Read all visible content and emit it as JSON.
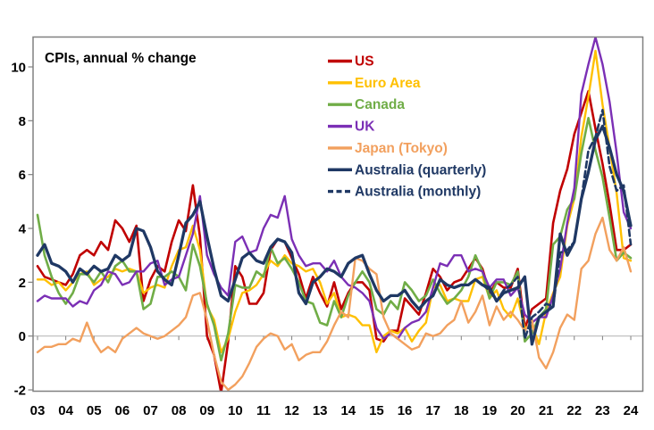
{
  "title": "CPIs, annual % change",
  "frame_color": "#808080",
  "zero_line_color": "#b9b9b9",
  "tick_color": "#808080",
  "chart_data": {
    "type": "line",
    "title": "CPIs, annual % change",
    "xlabel": "",
    "ylabel": "",
    "x_tick_labels": [
      "03",
      "04",
      "05",
      "06",
      "07",
      "08",
      "09",
      "10",
      "11",
      "12",
      "13",
      "14",
      "15",
      "16",
      "17",
      "18",
      "19",
      "20",
      "21",
      "22",
      "23",
      "24"
    ],
    "y_ticks": [
      -2,
      0,
      2,
      4,
      6,
      8,
      10
    ],
    "x_range": [
      2003.0,
      2024.35
    ],
    "y_range": [
      -2.05,
      11.1
    ],
    "grid": "horizontal-zero-line-only",
    "legend_position": "inside-top-center",
    "x_step": 0.25,
    "series": [
      {
        "name": "US",
        "color": "#C00000",
        "style": "solid",
        "width": 2.6,
        "start": 2003.0,
        "values": [
          2.6,
          2.2,
          2.1,
          2.0,
          1.9,
          2.3,
          3.0,
          3.2,
          3.0,
          3.5,
          3.2,
          4.3,
          4.0,
          3.5,
          4.1,
          1.3,
          2.1,
          2.6,
          2.4,
          3.5,
          4.3,
          3.9,
          5.6,
          3.7,
          0.0,
          -0.7,
          -2.1,
          -0.2,
          2.6,
          2.2,
          1.2,
          1.2,
          1.6,
          3.2,
          3.6,
          3.5,
          2.9,
          2.3,
          1.4,
          2.2,
          1.6,
          1.1,
          2.0,
          1.0,
          1.6,
          2.0,
          2.0,
          1.7,
          -0.1,
          -0.2,
          0.2,
          0.2,
          1.4,
          1.1,
          0.8,
          1.6,
          2.5,
          2.2,
          1.7,
          2.0,
          2.1,
          2.5,
          2.9,
          2.5,
          1.6,
          2.0,
          1.8,
          1.8,
          2.5,
          0.3,
          1.0,
          1.2,
          1.4,
          4.2,
          5.4,
          6.2,
          7.5,
          8.3,
          9.1,
          7.7,
          6.4,
          4.9,
          3.2,
          3.2,
          3.4
        ]
      },
      {
        "name": "Euro Area",
        "color": "#FFC000",
        "style": "solid",
        "width": 2.4,
        "start": 2003.0,
        "values": [
          2.1,
          2.1,
          1.9,
          2.0,
          1.7,
          2.0,
          2.3,
          2.4,
          1.9,
          2.1,
          2.2,
          2.5,
          2.4,
          2.5,
          2.4,
          1.6,
          1.8,
          1.9,
          1.8,
          2.6,
          3.2,
          3.3,
          4.1,
          3.2,
          1.1,
          0.6,
          -0.6,
          -0.1,
          0.9,
          1.6,
          1.7,
          1.9,
          2.3,
          2.8,
          2.6,
          3.0,
          2.7,
          2.6,
          2.4,
          2.5,
          2.0,
          1.2,
          1.6,
          0.7,
          0.8,
          0.7,
          0.4,
          0.4,
          -0.6,
          0.0,
          0.2,
          0.1,
          0.3,
          -0.2,
          0.2,
          0.5,
          1.8,
          1.9,
          1.3,
          1.4,
          1.3,
          1.3,
          2.1,
          2.2,
          1.4,
          1.7,
          1.0,
          0.7,
          1.4,
          0.3,
          0.4,
          -0.3,
          0.9,
          1.6,
          2.2,
          4.1,
          5.1,
          7.4,
          8.9,
          10.6,
          8.6,
          7.0,
          5.3,
          2.9,
          2.8
        ]
      },
      {
        "name": "Canada",
        "color": "#70AD47",
        "style": "solid",
        "width": 2.6,
        "start": 2003.0,
        "values": [
          4.5,
          3.0,
          2.2,
          1.6,
          1.2,
          1.6,
          2.3,
          2.3,
          2.0,
          2.4,
          2.0,
          2.6,
          2.8,
          2.4,
          2.4,
          1.0,
          1.2,
          2.2,
          2.2,
          2.4,
          2.2,
          1.7,
          3.4,
          2.6,
          1.2,
          0.4,
          -0.9,
          0.1,
          1.9,
          1.8,
          1.8,
          2.4,
          2.2,
          3.3,
          2.7,
          2.9,
          2.5,
          2.0,
          1.3,
          1.2,
          0.5,
          0.4,
          1.3,
          0.7,
          1.5,
          2.0,
          2.4,
          2.0,
          1.0,
          0.8,
          1.3,
          1.0,
          2.0,
          1.7,
          1.3,
          1.5,
          2.1,
          1.6,
          1.2,
          1.4,
          1.7,
          2.2,
          3.0,
          2.4,
          1.4,
          2.0,
          2.0,
          1.9,
          2.4,
          -0.2,
          0.1,
          0.7,
          1.0,
          3.4,
          3.7,
          4.7,
          5.1,
          6.8,
          8.1,
          6.9,
          5.9,
          4.4,
          2.8,
          3.1,
          2.9
        ]
      },
      {
        "name": "UK",
        "color": "#7B2FB5",
        "style": "solid",
        "width": 2.4,
        "start": 2003.0,
        "values": [
          1.3,
          1.5,
          1.4,
          1.4,
          1.4,
          1.1,
          1.3,
          1.2,
          1.7,
          1.9,
          2.4,
          2.3,
          1.9,
          2.0,
          2.4,
          2.4,
          2.7,
          2.8,
          1.9,
          2.1,
          2.2,
          3.0,
          3.8,
          5.2,
          3.0,
          2.3,
          1.8,
          1.5,
          3.5,
          3.7,
          3.1,
          3.2,
          4.0,
          4.5,
          4.4,
          5.2,
          3.6,
          3.0,
          2.6,
          2.7,
          2.7,
          2.4,
          2.8,
          2.2,
          1.9,
          1.8,
          1.6,
          1.3,
          0.3,
          -0.1,
          0.1,
          -0.1,
          0.3,
          0.5,
          0.6,
          0.9,
          1.8,
          2.7,
          2.6,
          3.0,
          3.0,
          2.4,
          2.5,
          2.4,
          1.8,
          2.1,
          2.1,
          1.5,
          1.8,
          0.8,
          0.5,
          0.7,
          0.7,
          1.5,
          2.5,
          4.2,
          5.5,
          9.0,
          10.1,
          11.1,
          10.1,
          8.7,
          6.8,
          4.6,
          4.0
        ]
      },
      {
        "name": "Japan (Tokyo)",
        "color": "#F2A05E",
        "style": "solid",
        "width": 2.4,
        "start": 2003.0,
        "values": [
          -0.6,
          -0.4,
          -0.4,
          -0.3,
          -0.3,
          -0.1,
          -0.2,
          0.5,
          -0.2,
          -0.6,
          -0.4,
          -0.6,
          -0.1,
          0.1,
          0.3,
          0.1,
          0.0,
          -0.1,
          0.0,
          0.2,
          0.4,
          0.7,
          1.5,
          1.6,
          0.6,
          -0.7,
          -1.7,
          -2.0,
          -1.8,
          -1.5,
          -1.0,
          -0.4,
          -0.1,
          0.1,
          0.0,
          -0.5,
          -0.3,
          -0.9,
          -0.7,
          -0.6,
          -0.6,
          -0.2,
          0.4,
          0.9,
          0.7,
          2.9,
          2.8,
          2.5,
          2.3,
          0.7,
          0.1,
          -0.1,
          -0.3,
          -0.5,
          -0.4,
          0.1,
          0.0,
          0.1,
          0.4,
          0.6,
          1.3,
          0.5,
          0.9,
          1.5,
          0.4,
          1.1,
          0.6,
          0.9,
          0.6,
          0.2,
          0.6,
          -0.8,
          -1.2,
          -0.6,
          0.3,
          0.8,
          0.6,
          2.5,
          2.8,
          3.8,
          4.4,
          3.2,
          2.8,
          3.3,
          2.4
        ]
      },
      {
        "name": "Australia (quarterly)",
        "color": "#1F3864",
        "style": "solid",
        "width": 3.3,
        "start": 2003.0,
        "values": [
          3.0,
          3.4,
          2.7,
          2.6,
          2.4,
          2.0,
          2.5,
          2.3,
          2.6,
          2.4,
          2.5,
          3.0,
          2.8,
          3.0,
          4.0,
          3.9,
          3.3,
          2.4,
          2.1,
          1.9,
          3.0,
          4.2,
          4.5,
          5.0,
          3.7,
          2.5,
          1.5,
          1.3,
          2.1,
          2.9,
          3.1,
          2.8,
          2.7,
          3.3,
          3.6,
          3.5,
          3.1,
          1.6,
          1.2,
          2.0,
          2.2,
          2.5,
          2.4,
          2.2,
          2.7,
          2.9,
          3.0,
          2.3,
          1.7,
          1.3,
          1.5,
          1.5,
          1.7,
          1.3,
          1.0,
          1.3,
          1.5,
          2.1,
          1.9,
          1.8,
          1.9,
          1.9,
          2.1,
          1.9,
          1.8,
          1.3,
          1.6,
          1.7,
          1.8,
          2.2,
          -0.3,
          0.7,
          0.9,
          1.1,
          3.8,
          3.0,
          3.5,
          5.1,
          6.1,
          7.3,
          7.8,
          7.0,
          6.0,
          5.4,
          4.1
        ]
      },
      {
        "name": "Australia (monthly)",
        "color": "#1F3864",
        "style": "dashed",
        "width": 2.6,
        "start": 2018.75,
        "values": [
          1.9,
          1.7,
          1.3,
          1.7,
          1.9,
          2.2,
          -0.1,
          0.7,
          0.9,
          1.2,
          1.1,
          3.1,
          3.2,
          3.5,
          5.1,
          6.9,
          7.4,
          8.4,
          6.3,
          5.4,
          5.6,
          3.4
        ]
      }
    ]
  }
}
